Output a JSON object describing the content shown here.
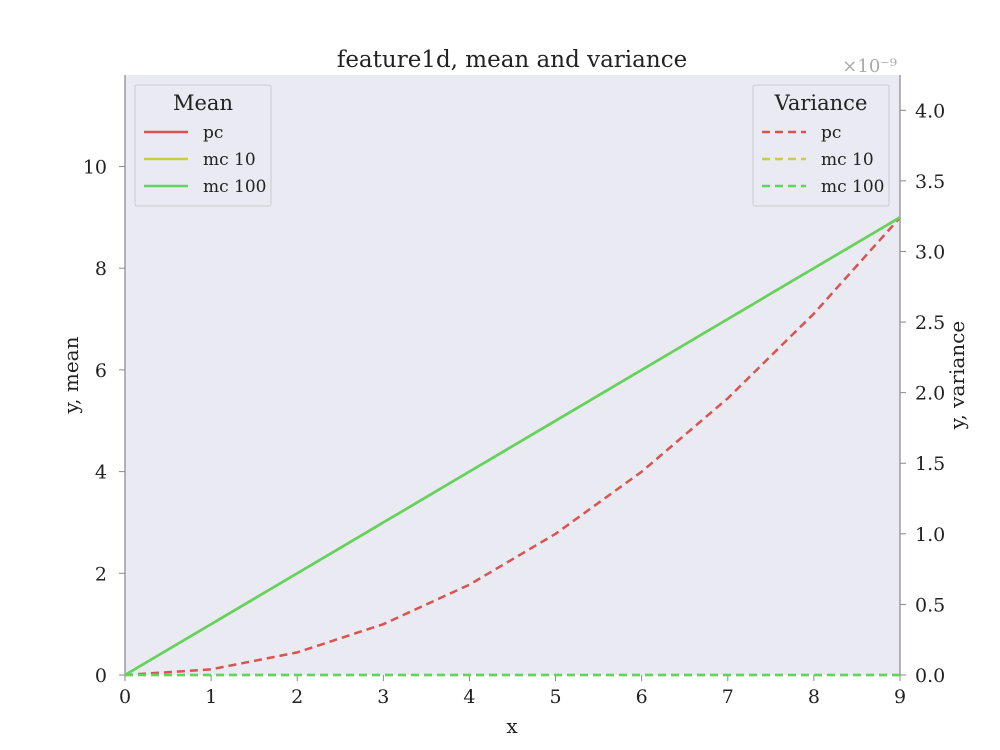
{
  "chart_data": {
    "type": "line",
    "title": "feature1d, mean and variance",
    "xlabel": "x",
    "ylabel_left": "y, mean",
    "ylabel_right": "y, variance",
    "xlim": [
      0,
      9
    ],
    "ylim_left": [
      0,
      11.8
    ],
    "ylim_right": [
      0,
      4.25
    ],
    "right_axis_offset_text": "×10⁻⁹",
    "xticks": [
      "0",
      "1",
      "2",
      "3",
      "4",
      "5",
      "6",
      "7",
      "8",
      "9"
    ],
    "yticks_left": [
      "0",
      "2",
      "4",
      "6",
      "8",
      "10"
    ],
    "yticks_right": [
      "0.0",
      "0.5",
      "1.0",
      "1.5",
      "2.0",
      "2.5",
      "3.0",
      "3.5",
      "4.0"
    ],
    "grid": false,
    "x": [
      0,
      1,
      2,
      3,
      4,
      5,
      6,
      7,
      8,
      9
    ],
    "mean_legend": {
      "title": "Mean",
      "placement": "top-left",
      "series": [
        {
          "name": "pc",
          "color": "#d9534f",
          "style": "solid",
          "values": [
            0,
            1,
            2,
            3,
            4,
            5,
            6,
            7,
            8,
            9
          ]
        },
        {
          "name": "mc 10",
          "color": "#cccc44",
          "style": "solid",
          "values": [
            0,
            1,
            2,
            3,
            4,
            5,
            6,
            7,
            8,
            9
          ]
        },
        {
          "name": "mc 100",
          "color": "#5cd65c",
          "style": "solid",
          "values": [
            0,
            1,
            2,
            3,
            4,
            5,
            6,
            7,
            8,
            9
          ]
        }
      ]
    },
    "variance_legend": {
      "title": "Variance",
      "placement": "top-right",
      "series": [
        {
          "name": "pc",
          "color": "#d9534f",
          "style": "dashed",
          "values": [
            0,
            0.04,
            0.16,
            0.36,
            0.64,
            1.0,
            1.44,
            1.96,
            2.56,
            3.24
          ]
        },
        {
          "name": "mc 10",
          "color": "#cccc44",
          "style": "dashed",
          "values": [
            0,
            0,
            0,
            0,
            0,
            0,
            0,
            0,
            0,
            0
          ]
        },
        {
          "name": "mc 100",
          "color": "#5cd65c",
          "style": "dashed",
          "values": [
            0,
            0,
            0,
            0,
            0,
            0,
            0,
            0,
            0,
            0
          ]
        }
      ]
    },
    "colors": {
      "plot_background": "#eaeaf2",
      "axis": "#888888"
    }
  }
}
